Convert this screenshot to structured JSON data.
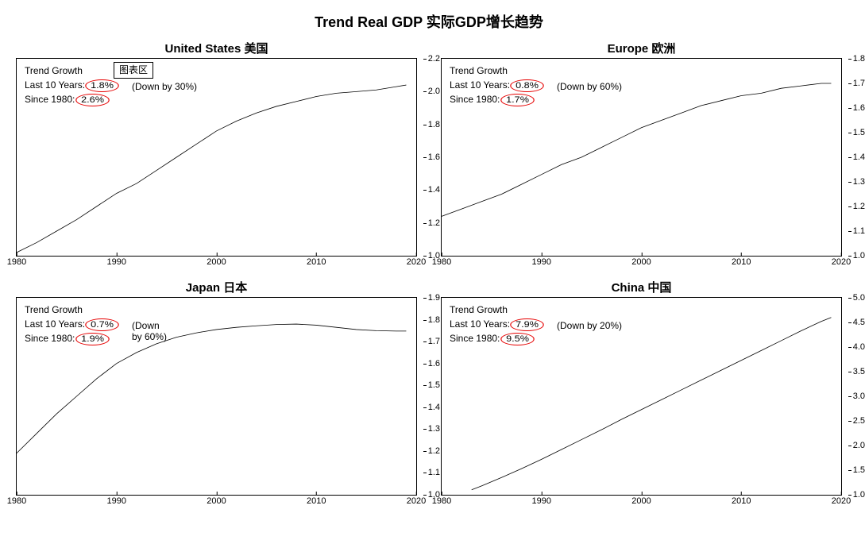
{
  "title": "Trend Real GDP 实际GDP增长趋势",
  "legend_box_label": "图表区",
  "style": {
    "line_color": "#000000",
    "line_width": 1.8,
    "circle_color": "#e60000",
    "background": "#ffffff",
    "font_family": "Arial",
    "title_fontsize": 18,
    "panel_title_fontsize": 15,
    "tick_fontsize": 11,
    "annot_fontsize": 12
  },
  "x_axis": {
    "min": 1980,
    "max": 2020,
    "ticks": [
      1980,
      1990,
      2000,
      2010,
      2020
    ]
  },
  "panels": [
    {
      "key": "us",
      "title": "United States 美国",
      "trend_growth_label": "Trend Growth",
      "last10_label": "Last 10 Years:",
      "last10_value": "1.8%",
      "since_label": "Since 1980:",
      "since_value": "2.6%",
      "down_note": "(Down by 30%)",
      "y": {
        "min": 1.0,
        "max": 2.2,
        "ticks": [
          1.0,
          1.2,
          1.4,
          1.6,
          1.8,
          2.0,
          2.2
        ]
      },
      "series": [
        [
          1980,
          1.02
        ],
        [
          1982,
          1.08
        ],
        [
          1984,
          1.15
        ],
        [
          1986,
          1.22
        ],
        [
          1988,
          1.3
        ],
        [
          1990,
          1.38
        ],
        [
          1992,
          1.44
        ],
        [
          1994,
          1.52
        ],
        [
          1996,
          1.6
        ],
        [
          1998,
          1.68
        ],
        [
          2000,
          1.76
        ],
        [
          2002,
          1.82
        ],
        [
          2004,
          1.87
        ],
        [
          2006,
          1.91
        ],
        [
          2008,
          1.94
        ],
        [
          2010,
          1.97
        ],
        [
          2012,
          1.99
        ],
        [
          2014,
          2.0
        ],
        [
          2016,
          2.01
        ],
        [
          2018,
          2.03
        ],
        [
          2019,
          2.04
        ]
      ],
      "show_legend_box": true
    },
    {
      "key": "eu",
      "title": "Europe  欧洲",
      "trend_growth_label": "Trend Growth",
      "last10_label": "Last 10 Years:",
      "last10_value": "0.8%",
      "since_label": "Since 1980:",
      "since_value": "1.7%",
      "down_note": "(Down by 60%)",
      "y": {
        "min": 1.0,
        "max": 1.8,
        "ticks": [
          1.0,
          1.1,
          1.2,
          1.3,
          1.4,
          1.5,
          1.6,
          1.7,
          1.8
        ]
      },
      "series": [
        [
          1980,
          1.16
        ],
        [
          1982,
          1.19
        ],
        [
          1984,
          1.22
        ],
        [
          1986,
          1.25
        ],
        [
          1988,
          1.29
        ],
        [
          1990,
          1.33
        ],
        [
          1992,
          1.37
        ],
        [
          1994,
          1.4
        ],
        [
          1996,
          1.44
        ],
        [
          1998,
          1.48
        ],
        [
          2000,
          1.52
        ],
        [
          2002,
          1.55
        ],
        [
          2004,
          1.58
        ],
        [
          2006,
          1.61
        ],
        [
          2008,
          1.63
        ],
        [
          2010,
          1.65
        ],
        [
          2012,
          1.66
        ],
        [
          2014,
          1.68
        ],
        [
          2016,
          1.69
        ],
        [
          2018,
          1.7
        ],
        [
          2019,
          1.7
        ]
      ]
    },
    {
      "key": "jp",
      "title": "Japan  日本",
      "trend_growth_label": "Trend Growth",
      "last10_label": "Last 10 Years:",
      "last10_value": "0.7%",
      "since_label": "Since 1980:",
      "since_value": "1.9%",
      "down_note": "(Down\nby 60%)",
      "y": {
        "min": 1.0,
        "max": 1.9,
        "ticks": [
          1.0,
          1.1,
          1.2,
          1.3,
          1.4,
          1.5,
          1.6,
          1.7,
          1.8,
          1.9
        ]
      },
      "series": [
        [
          1980,
          1.19
        ],
        [
          1982,
          1.28
        ],
        [
          1984,
          1.37
        ],
        [
          1986,
          1.45
        ],
        [
          1988,
          1.53
        ],
        [
          1990,
          1.6
        ],
        [
          1992,
          1.65
        ],
        [
          1994,
          1.69
        ],
        [
          1996,
          1.72
        ],
        [
          1998,
          1.74
        ],
        [
          2000,
          1.755
        ],
        [
          2002,
          1.765
        ],
        [
          2004,
          1.772
        ],
        [
          2006,
          1.778
        ],
        [
          2008,
          1.78
        ],
        [
          2010,
          1.775
        ],
        [
          2012,
          1.765
        ],
        [
          2014,
          1.755
        ],
        [
          2016,
          1.75
        ],
        [
          2018,
          1.748
        ],
        [
          2019,
          1.748
        ]
      ]
    },
    {
      "key": "cn",
      "title": "China  中国",
      "trend_growth_label": "Trend Growth",
      "last10_label": "Last 10 Years:",
      "last10_value": "7.9%",
      "since_label": "Since 1980:",
      "since_value": "9.5%",
      "down_note": "(Down by 20%)",
      "y": {
        "min": 1.0,
        "max": 5.0,
        "ticks": [
          1.0,
          1.5,
          2.0,
          2.5,
          3.0,
          3.5,
          4.0,
          4.5,
          5.0
        ]
      },
      "series": [
        [
          1983,
          1.1
        ],
        [
          1984,
          1.18
        ],
        [
          1986,
          1.35
        ],
        [
          1988,
          1.53
        ],
        [
          1990,
          1.72
        ],
        [
          1992,
          1.92
        ],
        [
          1994,
          2.12
        ],
        [
          1996,
          2.32
        ],
        [
          1998,
          2.53
        ],
        [
          2000,
          2.73
        ],
        [
          2002,
          2.93
        ],
        [
          2004,
          3.13
        ],
        [
          2006,
          3.33
        ],
        [
          2008,
          3.53
        ],
        [
          2010,
          3.73
        ],
        [
          2012,
          3.93
        ],
        [
          2014,
          4.13
        ],
        [
          2016,
          4.33
        ],
        [
          2018,
          4.52
        ],
        [
          2019,
          4.6
        ]
      ]
    }
  ]
}
